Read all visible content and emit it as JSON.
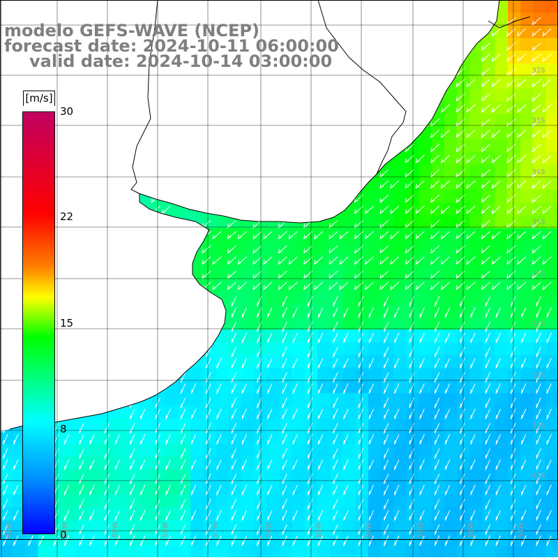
{
  "header": {
    "title_line1": "modelo GEFS-WAVE (NCEP)",
    "title_line2": "forecast date: 2024-10-11 06:00:00",
    "title_line3": "valid date: 2024-10-14 03:00:00"
  },
  "colorbar": {
    "unit": "[m/s]",
    "ticks": [
      "30",
      "22",
      "15",
      "8",
      "0"
    ],
    "range": [
      0,
      30
    ],
    "stops": [
      {
        "v": 0,
        "color": "#0000ff"
      },
      {
        "v": 4,
        "color": "#0090ff"
      },
      {
        "v": 8,
        "color": "#00ffff"
      },
      {
        "v": 14,
        "color": "#00ff00"
      },
      {
        "v": 17,
        "color": "#ffff00"
      },
      {
        "v": 19,
        "color": "#ff8000"
      },
      {
        "v": 22.8,
        "color": "#ff0000"
      },
      {
        "v": 30,
        "color": "#c00060"
      }
    ]
  },
  "map": {
    "region": "southern Brazil / Uruguay / Rio de la Plata coast",
    "longitude_labels": [
      "61W",
      "60W",
      "59W",
      "58W",
      "57W",
      "56W",
      "55W",
      "54W",
      "53W",
      "52W",
      "51W"
    ],
    "latitude_labels": [
      "32S",
      "33S",
      "34S",
      "35S",
      "36S",
      "37S",
      "38S",
      "39S",
      "40S"
    ],
    "wind_direction": "from northeast to southwest",
    "land_color": "#ffffff",
    "grid_color": "#000000"
  }
}
